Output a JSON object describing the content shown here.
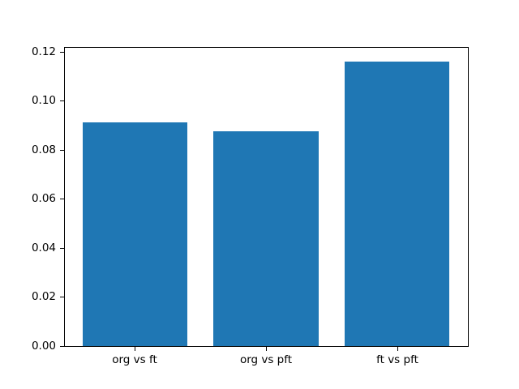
{
  "chart_data": {
    "type": "bar",
    "categories": [
      "org vs ft",
      "org vs pft",
      "ft vs pft"
    ],
    "values": [
      0.0913,
      0.0877,
      0.1161
    ],
    "title": "",
    "xlabel": "",
    "ylabel": "",
    "ylim": [
      0,
      0.1219
    ],
    "ytick_labels": [
      "0.00",
      "0.02",
      "0.04",
      "0.06",
      "0.08",
      "0.10",
      "0.12"
    ],
    "ytick_values": [
      0.0,
      0.02,
      0.04,
      0.06,
      0.08,
      0.1,
      0.12
    ],
    "bar_color": "#1f77b4",
    "axis_color": "#000000",
    "background_color": "#ffffff",
    "grid": false,
    "legend": null
  }
}
